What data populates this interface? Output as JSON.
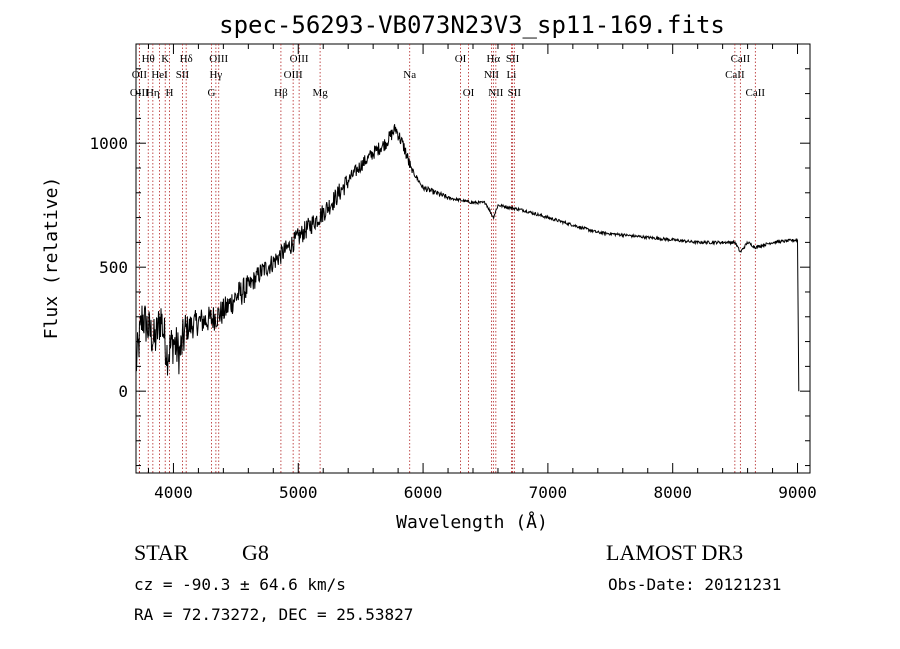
{
  "chart_data": {
    "type": "line",
    "title": "spec-56293-VB073N23V3_sp11-169.fits",
    "xlabel": "Wavelength (Å)",
    "ylabel": "Flux (relative)",
    "xlim": [
      3700,
      9100
    ],
    "ylim": [
      -330,
      1400
    ],
    "xticks": [
      4000,
      5000,
      6000,
      7000,
      8000,
      9000
    ],
    "xtick_labels": [
      "4000",
      "5000",
      "6000",
      "7000",
      "8000",
      "9000"
    ],
    "yticks": [
      0,
      500,
      1000
    ],
    "ytick_labels": [
      "0",
      "500",
      "1000"
    ],
    "grid": false,
    "series": [
      {
        "name": "spectrum",
        "x": [
          3700,
          3750,
          3800,
          3850,
          3900,
          3950,
          4000,
          4050,
          4100,
          4200,
          4300,
          4400,
          4500,
          4600,
          4700,
          4800,
          4900,
          5000,
          5100,
          5200,
          5300,
          5400,
          5500,
          5600,
          5700,
          5780,
          5850,
          5900,
          5950,
          6000,
          6100,
          6200,
          6300,
          6400,
          6500,
          6563,
          6600,
          6700,
          6800,
          7000,
          7200,
          7400,
          7600,
          7800,
          8000,
          8200,
          8400,
          8500,
          8542,
          8600,
          8662,
          8800,
          9000,
          9010
        ],
        "y": [
          100,
          300,
          250,
          200,
          300,
          150,
          200,
          150,
          250,
          280,
          290,
          320,
          380,
          420,
          480,
          520,
          570,
          620,
          670,
          720,
          780,
          850,
          910,
          960,
          1000,
          1060,
          980,
          900,
          860,
          820,
          800,
          780,
          770,
          760,
          760,
          700,
          750,
          740,
          730,
          700,
          670,
          640,
          630,
          620,
          610,
          600,
          600,
          600,
          560,
          600,
          580,
          600,
          610,
          0
        ]
      }
    ],
    "lines": [
      {
        "label": "Hθ",
        "x": 3798,
        "row": 1
      },
      {
        "label": "OII",
        "x": 3727,
        "row": 2
      },
      {
        "label": "OIII",
        "x": 3727,
        "row": 3
      },
      {
        "label": "K",
        "x": 3934,
        "row": 1
      },
      {
        "label": "HeI",
        "x": 3889,
        "row": 2
      },
      {
        "label": "Hη",
        "x": 3835,
        "row": 3
      },
      {
        "label": "Hδ",
        "x": 4102,
        "row": 1
      },
      {
        "label": "SII",
        "x": 4072,
        "row": 2
      },
      {
        "label": "H",
        "x": 3968,
        "row": 3
      },
      {
        "label": "OIII",
        "x": 4363,
        "row": 1
      },
      {
        "label": "Hγ",
        "x": 4340,
        "row": 2
      },
      {
        "label": "G",
        "x": 4305,
        "row": 3
      },
      {
        "label": "OIII",
        "x": 5007,
        "row": 1
      },
      {
        "label": "OIII",
        "x": 4959,
        "row": 2
      },
      {
        "label": "Hβ",
        "x": 4861,
        "row": 3
      },
      {
        "label": "Mg",
        "x": 5175,
        "row": 3
      },
      {
        "label": "Na",
        "x": 5893,
        "row": 2
      },
      {
        "label": "OI",
        "x": 6300,
        "row": 1
      },
      {
        "label": "OI",
        "x": 6364,
        "row": 3
      },
      {
        "label": "Hα",
        "x": 6563,
        "row": 1
      },
      {
        "label": "NII",
        "x": 6548,
        "row": 2
      },
      {
        "label": "NII",
        "x": 6583,
        "row": 3
      },
      {
        "label": "SII",
        "x": 6717,
        "row": 1
      },
      {
        "label": "Li",
        "x": 6708,
        "row": 2
      },
      {
        "label": "SII",
        "x": 6731,
        "row": 3
      },
      {
        "label": "CaII",
        "x": 8542,
        "row": 1
      },
      {
        "label": "CaII",
        "x": 8498,
        "row": 2
      },
      {
        "label": "CaII",
        "x": 8662,
        "row": 3
      }
    ]
  },
  "info": {
    "class": "STAR",
    "subclass": "G8",
    "survey": "LAMOST DR3",
    "cz": "cz = -90.3 ± 64.6 km/s",
    "obs_date": "Obs-Date: 20121231",
    "radec": "RA =  72.73272, DEC =  25.53827"
  }
}
